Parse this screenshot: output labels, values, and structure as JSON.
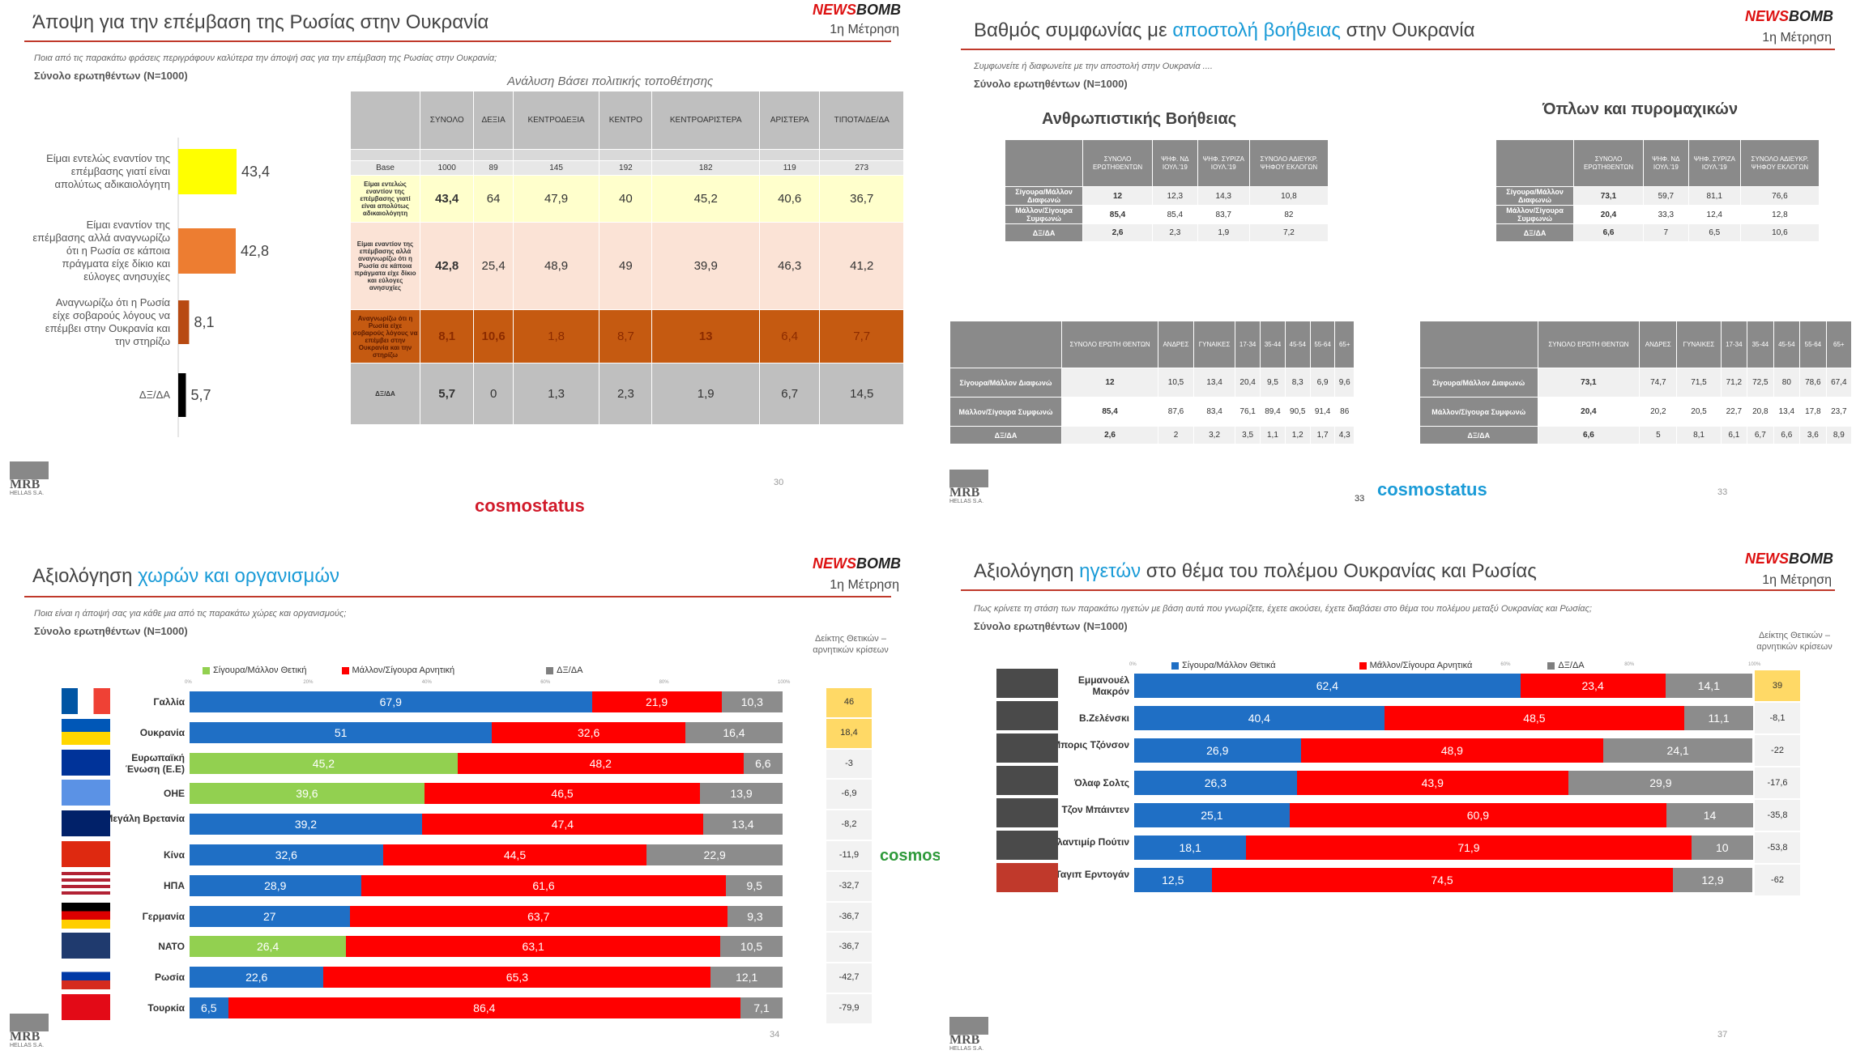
{
  "brand": {
    "logo_a": "NEWS",
    "logo_b": "BOMB",
    "measure": "1η Μέτρηση",
    "mrb": "MRB",
    "mrb_sub": "HELLAS S.A.",
    "watermark": "cosmostatus"
  },
  "p1": {
    "title": "Άποψη για την επέμβαση της Ρωσίας στην Ουκρανία",
    "question": "Ποια από τις παρακάτω φράσεις περιγράφουν καλύτερα την άποψή σας για την επέμβαση της Ρωσίας στην Ουκρανία;",
    "n": "Σύνολο ερωτηθέντων (N=1000)",
    "analysis": "Ανάλυση Βάσει πολιτικής τοποθέτησης",
    "page": "30",
    "columns": [
      "ΣΥΝΟΛΟ",
      "ΔΕΞΙΑ",
      "ΚΕΝΤΡΟΔΕΞΙΑ",
      "ΚΕΝΤΡΟ",
      "ΚΕΝΤΡΟΑΡΙΣΤΕΡΑ",
      "ΑΡΙΣΤΕΡΑ",
      "ΤΙΠΟΤΑ/ΔΕ/ΔΑ"
    ],
    "base_label": "Base",
    "base": [
      "1000",
      "89",
      "145",
      "192",
      "182",
      "119",
      "273"
    ],
    "rows": [
      {
        "label": "Είμαι εντελώς εναντίον της επέμβασης γιατί είναι απολύτως αδικαιολόγητη",
        "vals": [
          "43,4",
          "64",
          "47,9",
          "40",
          "45,2",
          "40,6",
          "36,7"
        ]
      },
      {
        "label": "Είμαι εναντίον της επέμβασης αλλά αναγνωρίζω ότι η Ρωσία σε κάποια πράγματα είχε δίκιο και εύλογες ανησυχίες",
        "vals": [
          "42,8",
          "25,4",
          "48,9",
          "49",
          "39,9",
          "46,3",
          "41,2"
        ]
      },
      {
        "label": "Αναγνωρίζω ότι η Ρωσία είχε σοβαρούς λόγους να επέμβει στην Ουκρανία και την στηρίζω",
        "vals": [
          "8,1",
          "10,6",
          "1,8",
          "8,7",
          "13",
          "6,4",
          "7,7"
        ]
      },
      {
        "label": "ΔΞ/ΔΑ",
        "vals": [
          "5,7",
          "0",
          "1,3",
          "2,3",
          "1,9",
          "6,7",
          "14,5"
        ]
      }
    ]
  },
  "p2": {
    "title_a": "Βαθμός συμφωνίας με ",
    "title_hl": "αποστολή  βοήθειας",
    "title_b": " στην Ουκρανία",
    "question": "Συμφωνείτε ή διαφωνείτε με την αποστολή στην Ουκρανία ....",
    "n": "Σύνολο ερωτηθέντων (N=1000)",
    "sub_left": "Ανθρωπιστικής Βοήθειας",
    "sub_right": "Όπλων και πυρομαχικών",
    "page": "33",
    "page2": "33",
    "vote_cols": [
      "ΣΥΝΟΛΟ ΕΡΩΤΗΘΕΝΤΩΝ",
      "ΨΗΦ. ΝΔ ΙΟΥΛ.'19",
      "ΨΗΦ. ΣΥΡΙΖΑ ΙΟΥΛ.'19",
      "ΣΥΝΟΛΟ ΑΔΙΕΥΚΡ. ΨΗΦΟΥ ΕΚΛΟΓΩΝ"
    ],
    "demo_cols": [
      "ΣΥΝΟΛΟ ΕΡΩΤΗ ΘΕΝΤΩΝ",
      "ΑΝΔΡΕΣ",
      "ΓΥΝΑΙΚΕΣ",
      "17-34",
      "35-44",
      "45-54",
      "55-64",
      "65+"
    ],
    "vote_left": [
      {
        "label": "Σίγουρα/Μάλλον Διαφωνώ",
        "vals": [
          "12",
          "12,3",
          "14,3",
          "10,8"
        ]
      },
      {
        "label": "Μάλλον/Σίγουρα Συμφωνώ",
        "vals": [
          "85,4",
          "85,4",
          "83,7",
          "82"
        ]
      },
      {
        "label": "ΔΞ/ΔΑ",
        "vals": [
          "2,6",
          "2,3",
          "1,9",
          "7,2"
        ]
      }
    ],
    "vote_right": [
      {
        "label": "Σίγουρα/Μάλλον Διαφωνώ",
        "vals": [
          "73,1",
          "59,7",
          "81,1",
          "76,6"
        ]
      },
      {
        "label": "Μάλλον/Σίγουρα Συμφωνώ",
        "vals": [
          "20,4",
          "33,3",
          "12,4",
          "12,8"
        ]
      },
      {
        "label": "ΔΞ/ΔΑ",
        "vals": [
          "6,6",
          "7",
          "6,5",
          "10,6"
        ]
      }
    ],
    "demo_left": [
      {
        "label": "Σίγουρα/Μάλλον Διαφωνώ",
        "vals": [
          "12",
          "10,5",
          "13,4",
          "20,4",
          "9,5",
          "8,3",
          "6,9",
          "9,6"
        ]
      },
      {
        "label": "Μάλλον/Σίγουρα Συμφωνώ",
        "vals": [
          "85,4",
          "87,6",
          "83,4",
          "76,1",
          "89,4",
          "90,5",
          "91,4",
          "86"
        ]
      },
      {
        "label": "ΔΞ/ΔΑ",
        "vals": [
          "2,6",
          "2",
          "3,2",
          "3,5",
          "1,1",
          "1,2",
          "1,7",
          "4,3"
        ]
      }
    ],
    "demo_right": [
      {
        "label": "Σίγουρα/Μάλλον Διαφωνώ",
        "vals": [
          "73,1",
          "74,7",
          "71,5",
          "71,2",
          "72,5",
          "80",
          "78,6",
          "67,4"
        ]
      },
      {
        "label": "Μάλλον/Σίγουρα Συμφωνώ",
        "vals": [
          "20,4",
          "20,2",
          "20,5",
          "22,7",
          "20,8",
          "13,4",
          "17,8",
          "23,7"
        ]
      },
      {
        "label": "ΔΞ/ΔΑ",
        "vals": [
          "6,6",
          "5",
          "8,1",
          "6,1",
          "6,7",
          "6,6",
          "3,6",
          "8,9"
        ]
      }
    ]
  },
  "p3": {
    "title_a": "Αξιολόγηση ",
    "title_hl": "χωρών και οργανισμών",
    "question": "Ποια είναι η άποψή σας για κάθε μια από τις παρακάτω χώρες και οργανισμούς;",
    "n": "Σύνολο ερωτηθέντων (N=1000)",
    "index_head": "Δείκτης Θετικών – αρνητικών κρίσεων",
    "page": "34",
    "legend": [
      "Σίγουρα/Μάλλον Θετική",
      "Μάλλον/Σίγουρα Αρνητική",
      "ΔΞ/ΔΑ"
    ],
    "axis": [
      "0%",
      "20%",
      "40%",
      "60%",
      "80%",
      "100%"
    ]
  },
  "p4": {
    "title_a": "Αξιολόγηση ",
    "title_hl": "ηγετών",
    "title_b": " στο θέμα του πολέμου Ουκρανίας και Ρωσίας",
    "question": "Πως κρίνετε τη στάση των παρακάτω ηγετών με βάση αυτά που γνωρίζετε, έχετε ακούσει, έχετε διαβάσει στο θέμα του πολέμου μεταξύ Ουκρανίας και Ρωσίας;",
    "n": "Σύνολο ερωτηθέντων (N=1000)",
    "index_head": "Δείκτης Θετικών – αρνητικών κρίσεων",
    "page": "37",
    "legend": [
      "Σίγουρα/Μάλλον Θετικά",
      "Μάλλον/Σίγουρα Αρνητικά",
      "ΔΞ/ΔΑ"
    ],
    "axis": [
      "0%",
      "20%",
      "40%",
      "60%",
      "80%",
      "100%"
    ]
  },
  "chart_data": [
    {
      "type": "bar",
      "title": "Άποψη για την επέμβαση της Ρωσίας στην Ουκρανία",
      "categories": [
        "Είμαι εντελώς εναντίον της επέμβασης γιατί είναι απολύτως αδικαιολόγητη",
        "Είμαι εναντίον της επέμβασης αλλά αναγνωρίζω ότι η Ρωσία σε κάποια πράγματα είχε δίκιο και εύλογες ανησυχίες",
        "Αναγνωρίζω ότι η Ρωσία είχε σοβαρούς λόγους να επέμβει στην Ουκρανία και την στηρίζω",
        "ΔΞ/ΔΑ"
      ],
      "values": [
        43.4,
        42.8,
        8.1,
        5.7
      ],
      "labels": [
        "43,4",
        "42,8",
        "8,1",
        "5,7"
      ],
      "colors": [
        "#ffff00",
        "#ed7d31",
        "#b84a12",
        "#000000"
      ],
      "xlim": [
        0,
        50
      ]
    },
    {
      "type": "bar",
      "stacked": true,
      "title": "Αξιολόγηση χωρών και οργανισμών",
      "categories": [
        "Γαλλία",
        "Ουκρανία",
        "Ευρωπαϊκή Ένωση (Ε.Ε)",
        "ΟΗΕ",
        "Μεγάλη Βρετανία",
        "Κίνα",
        "ΗΠΑ",
        "Γερμανία",
        "ΝΑΤΟ",
        "Ρωσία",
        "Τουρκία"
      ],
      "series": [
        {
          "name": "Σίγουρα/Μάλλον Θετική",
          "values": [
            67.9,
            51,
            45.2,
            39.6,
            39.2,
            32.6,
            28.9,
            27,
            26.4,
            22.6,
            6.5
          ],
          "labels": [
            "67,9",
            "51",
            "45,2",
            "39,6",
            "39,2",
            "32,6",
            "28,9",
            "27",
            "26,4",
            "22,6",
            "6,5"
          ]
        },
        {
          "name": "Μάλλον/Σίγουρα Αρνητική",
          "values": [
            21.9,
            32.6,
            48.2,
            46.5,
            47.4,
            44.5,
            61.6,
            63.7,
            63.1,
            65.3,
            86.4
          ],
          "labels": [
            "21,9",
            "32,6",
            "48,2",
            "46,5",
            "47,4",
            "44,5",
            "61,6",
            "63,7",
            "63,1",
            "65,3",
            "86,4"
          ]
        },
        {
          "name": "ΔΞ/ΔΑ",
          "values": [
            10.3,
            16.4,
            6.6,
            13.9,
            13.4,
            22.9,
            9.5,
            9.3,
            10.5,
            12.1,
            7.1
          ],
          "labels": [
            "10,3",
            "16,4",
            "6,6",
            "13,9",
            "13,4",
            "22,9",
            "9,5",
            "9,3",
            "10,5",
            "12,1",
            "7,1"
          ]
        }
      ],
      "pos_colors": [
        "#1f6fc5",
        "#1f6fc5",
        "#92d050",
        "#92d050",
        "#1f6fc5",
        "#1f6fc5",
        "#1f6fc5",
        "#1f6fc5",
        "#92d050",
        "#1f6fc5",
        "#1f6fc5"
      ],
      "index": [
        "46",
        "18,4",
        "-3",
        "-6,9",
        "-8,2",
        "-11,9",
        "-32,7",
        "-36,7",
        "-36,7",
        "-42,7",
        "-79,9"
      ],
      "xlim": [
        0,
        100
      ]
    },
    {
      "type": "bar",
      "stacked": true,
      "title": "Αξιολόγηση ηγετών στο θέμα του πολέμου Ουκρανίας και Ρωσίας",
      "categories": [
        "Εμμανουέλ Μακρόν",
        "Β.Ζελένσκι",
        "Μπορις Τζόνσον",
        "Όλαφ Σολτς",
        "Τζον Μπάιντεν",
        "Βλαντιμίρ Πούτιν",
        "Ταγιπ Ερντογάν"
      ],
      "series": [
        {
          "name": "Σίγουρα/Μάλλον Θετικά",
          "values": [
            62.4,
            40.4,
            26.9,
            26.3,
            25.1,
            18.1,
            12.5
          ],
          "labels": [
            "62,4",
            "40,4",
            "26,9",
            "26,3",
            "25,1",
            "18,1",
            "12,5"
          ]
        },
        {
          "name": "Μάλλον/Σίγουρα Αρνητικά",
          "values": [
            23.4,
            48.5,
            48.9,
            43.9,
            60.9,
            71.9,
            74.5
          ],
          "labels": [
            "23,4",
            "48,5",
            "48,9",
            "43,9",
            "60,9",
            "71,9",
            "74,5"
          ]
        },
        {
          "name": "ΔΞ/ΔΑ",
          "values": [
            14.1,
            11.1,
            24.1,
            29.9,
            14,
            10,
            12.9
          ],
          "labels": [
            "14,1",
            "11,1",
            "24,1",
            "29,9",
            "14",
            "10",
            "12,9"
          ]
        }
      ],
      "index": [
        "39",
        "-8,1",
        "-22",
        "-17,6",
        "-35,8",
        "-53,8",
        "-62"
      ],
      "xlim": [
        0,
        100
      ]
    }
  ]
}
